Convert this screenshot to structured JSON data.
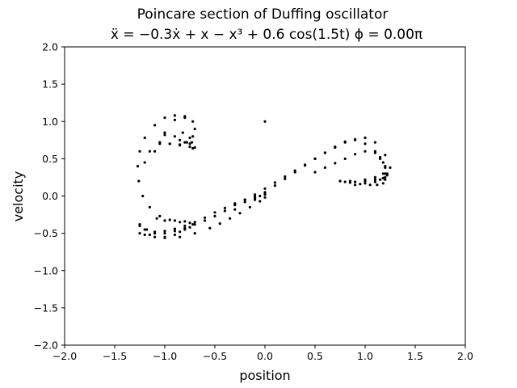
{
  "chart_data": {
    "type": "scatter",
    "title": "Poincare section of Duffing oscillator",
    "subtitle": "ẍ = −0.3ẋ + x − x³ + 0.6 cos(1.5t)    ϕ = 0.00π",
    "xlabel": "position",
    "ylabel": "velocity",
    "xlim": [
      -2.0,
      2.0
    ],
    "ylim": [
      -2.0,
      2.0
    ],
    "xticks": [
      "−2.0",
      "−1.5",
      "−1.0",
      "−0.5",
      "0.0",
      "0.5",
      "1.0",
      "1.5",
      "2.0"
    ],
    "yticks": [
      "−2.0",
      "−1.5",
      "−1.0",
      "−0.5",
      "0.0",
      "0.5",
      "1.0",
      "1.5",
      "2.0"
    ],
    "grid": false,
    "marker_color": "#000000",
    "series": [
      {
        "x": [
          -1.25,
          -1.2,
          -1.1,
          -1.0,
          -0.9,
          -0.8,
          -0.7,
          -0.6,
          -0.5,
          -0.4,
          -0.3,
          -0.2,
          -0.1,
          0.0,
          0.1,
          0.2,
          0.3,
          0.4,
          0.5,
          0.6,
          0.7,
          0.8,
          0.9,
          1.0,
          1.1,
          1.2,
          1.25,
          1.22,
          1.18,
          1.1,
          1.0,
          0.9,
          0.8,
          -1.25,
          -1.15,
          -1.0,
          -0.85,
          -0.7,
          -0.55,
          -0.45,
          -0.35,
          -0.25,
          -0.15,
          -0.05,
          0.0,
          -0.85,
          -0.95,
          -1.05,
          -1.15,
          -1.22,
          -1.26,
          -1.27,
          -1.25,
          -1.2,
          -1.1,
          -1.0,
          -0.9,
          -0.8,
          -1.25,
          -1.2,
          -1.1,
          -1.0,
          -0.9,
          -0.85,
          -0.8,
          -0.75,
          -0.72,
          -0.75,
          -0.8,
          -0.9,
          -1.0,
          -1.08,
          -1.1,
          -1.0,
          -0.9,
          -0.8,
          -0.72,
          -0.7,
          -0.72,
          -0.78,
          -0.85,
          -0.95,
          -1.05,
          -1.15,
          -1.2,
          -1.0,
          -0.9,
          -0.85,
          -0.8,
          -0.75,
          -0.73,
          -0.75,
          -0.82,
          -1.05,
          -0.95,
          -0.85,
          -0.75,
          -0.7,
          -0.72,
          -1.18,
          -1.1,
          -1.0,
          -0.9,
          -0.8,
          -0.7,
          -0.6,
          -0.5,
          -0.4,
          -0.3,
          -0.2,
          -0.1,
          0.0,
          -0.3,
          -0.2,
          -0.1,
          -0.05,
          0.0,
          -0.3,
          -0.1,
          0.0,
          0.1,
          0.2,
          0.3,
          0.4,
          0.5,
          0.6,
          0.7,
          0.8,
          0.9,
          1.0,
          1.1,
          1.15,
          1.2,
          1.22,
          1.2,
          1.15,
          1.1,
          1.0,
          0.9,
          0.5,
          0.6,
          0.7,
          0.8,
          0.9,
          1.0,
          1.1,
          1.15,
          1.18,
          1.2,
          1.18,
          1.1,
          1.0,
          0.85,
          0.75,
          0.75,
          0.85,
          0.95,
          1.05,
          1.12,
          1.18,
          1.2,
          1.2,
          0.0
        ],
        "y": [
          -0.38,
          -0.45,
          -0.5,
          -0.5,
          -0.47,
          -0.43,
          -0.38,
          -0.33,
          -0.27,
          -0.2,
          -0.12,
          -0.05,
          0.02,
          0.1,
          0.18,
          0.26,
          0.34,
          0.42,
          0.5,
          0.58,
          0.65,
          0.72,
          0.76,
          0.78,
          0.72,
          0.55,
          0.38,
          0.28,
          0.24,
          0.22,
          0.2,
          0.19,
          0.19,
          -0.4,
          -0.52,
          -0.56,
          -0.55,
          -0.5,
          -0.43,
          -0.37,
          -0.3,
          -0.23,
          -0.15,
          -0.07,
          -0.02,
          -0.35,
          -0.32,
          -0.27,
          -0.15,
          0.0,
          0.2,
          0.4,
          0.6,
          0.78,
          0.95,
          1.05,
          1.08,
          1.07,
          -0.5,
          -0.52,
          -0.55,
          -0.55,
          -0.52,
          -0.48,
          -0.45,
          -0.42,
          -0.38,
          -0.36,
          -0.34,
          -0.33,
          -0.33,
          -0.3,
          0.6,
          0.85,
          1.02,
          1.05,
          1.0,
          0.9,
          0.8,
          0.72,
          0.68,
          0.7,
          0.72,
          0.6,
          0.45,
          0.82,
          0.8,
          0.75,
          0.72,
          0.7,
          0.72,
          0.78,
          0.85,
          0.7,
          0.7,
          0.69,
          0.66,
          0.65,
          0.64,
          -0.45,
          -0.48,
          -0.47,
          -0.44,
          -0.4,
          -0.35,
          -0.29,
          -0.22,
          -0.16,
          -0.1,
          -0.05,
          -0.01,
          0.03,
          -0.12,
          -0.08,
          -0.03,
          0.0,
          0.02,
          -0.18,
          -0.05,
          0.05,
          0.14,
          0.23,
          0.32,
          0.41,
          0.5,
          0.58,
          0.66,
          0.73,
          0.75,
          0.7,
          0.6,
          0.5,
          0.4,
          0.3,
          0.25,
          0.22,
          0.19,
          0.17,
          0.15,
          0.32,
          0.38,
          0.44,
          0.5,
          0.56,
          0.6,
          0.58,
          0.52,
          0.45,
          0.38,
          0.3,
          0.25,
          0.22,
          0.2,
          0.2,
          0.2,
          0.18,
          0.16,
          0.15,
          0.15,
          0.17,
          0.22,
          0.3,
          1.0
        ]
      }
    ]
  }
}
